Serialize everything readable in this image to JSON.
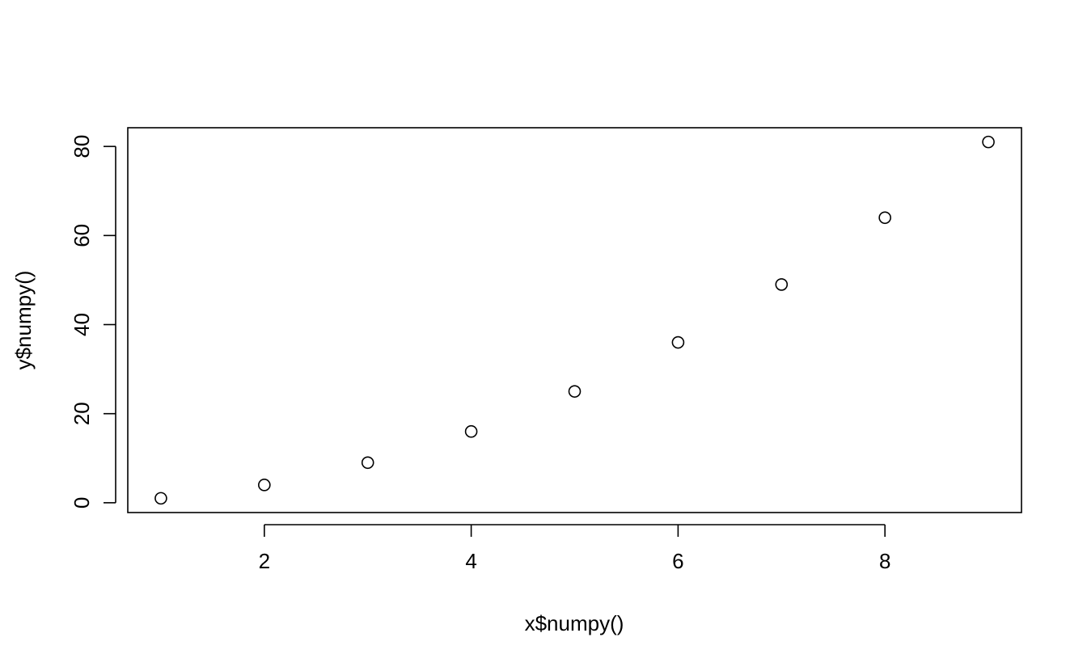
{
  "chart_data": {
    "type": "scatter",
    "title": "",
    "xlabel": "x$numpy()",
    "ylabel": "y$numpy()",
    "x": [
      1,
      2,
      3,
      4,
      5,
      6,
      7,
      8,
      9
    ],
    "y": [
      1,
      4,
      9,
      16,
      25,
      36,
      49,
      64,
      81
    ],
    "xlim": [
      0.68,
      9.32
    ],
    "ylim": [
      -2.2,
      84.2
    ],
    "x_ticks": [
      2,
      4,
      6,
      8
    ],
    "y_ticks": [
      0,
      20,
      40,
      60,
      80
    ],
    "x_tick_labels": [
      "2",
      "4",
      "6",
      "8"
    ],
    "y_tick_labels": [
      "0",
      "20",
      "40",
      "60",
      "80"
    ],
    "grid": false,
    "legend": "none",
    "marker": "open-circle",
    "colors": {
      "ink": "#000000",
      "background": "#ffffff"
    }
  }
}
